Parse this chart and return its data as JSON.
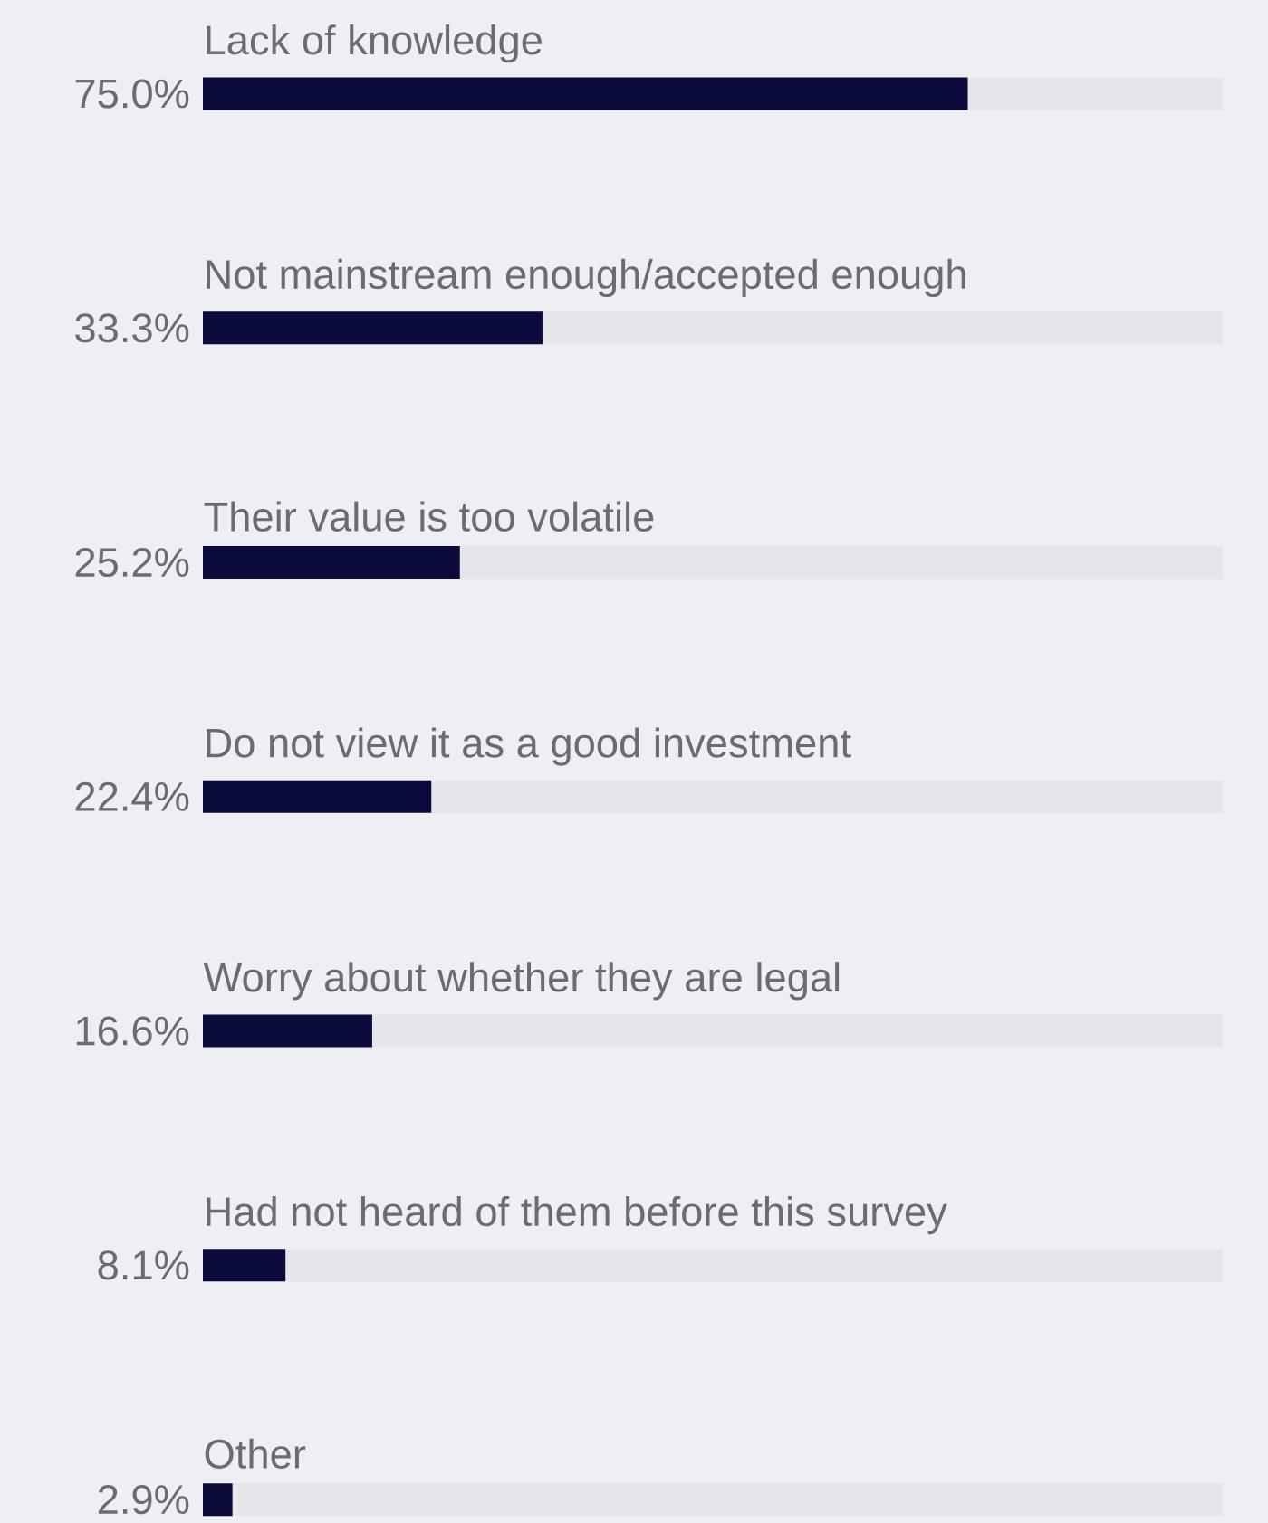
{
  "chart_data": {
    "type": "bar",
    "orientation": "horizontal",
    "categories": [
      "Lack of knowledge",
      "Not mainstream enough/accepted enough",
      "Their value is too volatile",
      "Do not view it as a good investment",
      "Worry about whether they are legal",
      "Had not heard of them before this survey",
      "Other"
    ],
    "values": [
      75.0,
      33.3,
      25.2,
      22.4,
      16.6,
      8.1,
      2.9
    ],
    "value_labels": [
      "75.0%",
      "33.3%",
      "25.2%",
      "22.4%",
      "16.6%",
      "8.1%",
      "2.9%"
    ],
    "color": "#0b0c3b",
    "xlim": [
      0,
      100
    ]
  }
}
